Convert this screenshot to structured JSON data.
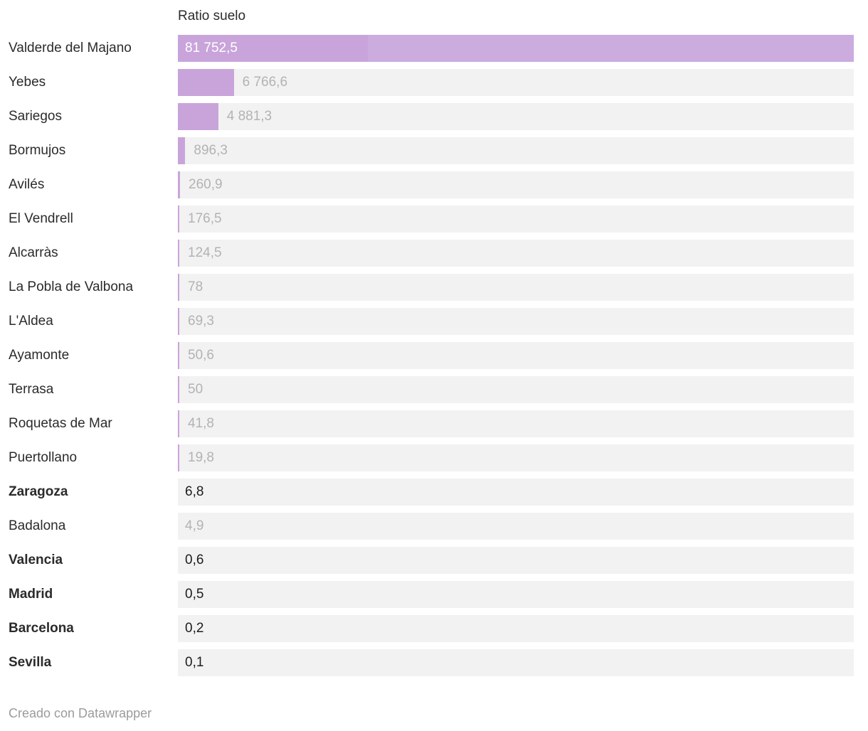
{
  "chart": {
    "header": "Ratio suelo"
  },
  "chart_data": {
    "type": "bar",
    "orientation": "horizontal",
    "title": "",
    "column_header": "Ratio suelo",
    "categories": [
      "Valderde del Majano",
      "Yebes",
      "Sariegos",
      "Bormujos",
      "Avilés",
      "El Vendrell",
      "Alcarràs",
      "La Pobla de Valbona",
      "L'Aldea",
      "Ayamonte",
      "Terrasa",
      "Roquetas de Mar",
      "Puertollano",
      "Zaragoza",
      "Badalona",
      "Valencia",
      "Madrid",
      "Barcelona",
      "Sevilla"
    ],
    "values": [
      81752.5,
      6766.6,
      4881.3,
      896.3,
      260.9,
      176.5,
      124.5,
      78,
      69.3,
      50.6,
      50,
      41.8,
      19.8,
      6.8,
      4.9,
      0.6,
      0.5,
      0.2,
      0.1
    ],
    "value_labels": [
      "81 752,5",
      "6 766,6",
      "4 881,3",
      "896,3",
      "260,9",
      "176,5",
      "124,5",
      "78",
      "69,3",
      "50,6",
      "50",
      "41,8",
      "19,8",
      "6,8",
      "4,9",
      "0,6",
      "0,5",
      "0,2",
      "0,1"
    ],
    "highlighted": [
      "Zaragoza",
      "Valencia",
      "Madrid",
      "Barcelona",
      "Sevilla"
    ],
    "xlim": [
      0,
      81752.5
    ],
    "grid": false,
    "legend": false,
    "bar_color": "#c9a4db",
    "bar_color_light": "#ccabdf",
    "track_color": "#f2f2f2",
    "label_color": "#2b2b2b",
    "muted_value_color": "#b3b3b3",
    "highlight_value_color": "#1d1d1d",
    "inside_value_color": "#ffffff"
  },
  "footer": {
    "credit": "Creado con Datawrapper"
  }
}
